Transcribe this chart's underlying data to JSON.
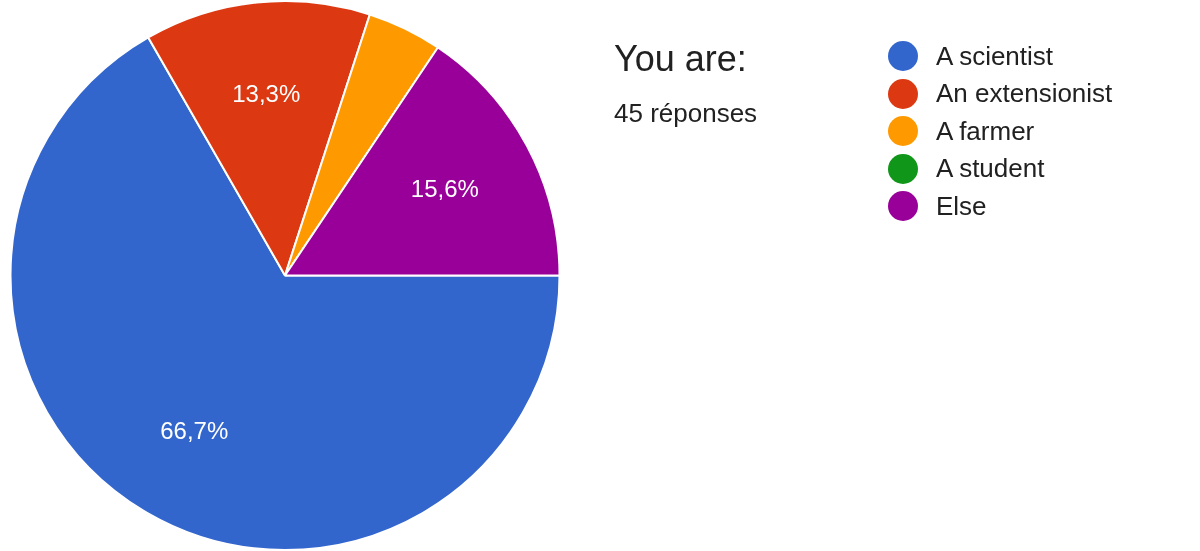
{
  "chart_data": {
    "type": "pie",
    "title": "You are:",
    "subtitle": "45 réponses",
    "categories": [
      "A scientist",
      "An extensionist",
      "A farmer",
      "A student",
      "Else"
    ],
    "values": [
      66.7,
      13.3,
      4.4,
      0,
      15.6
    ],
    "colors": [
      "#3366cc",
      "#dc3912",
      "#ff9900",
      "#109618",
      "#990099"
    ],
    "value_labels": [
      "66,7%",
      "13,3%",
      null,
      null,
      "15,6%"
    ],
    "legend": "right"
  }
}
